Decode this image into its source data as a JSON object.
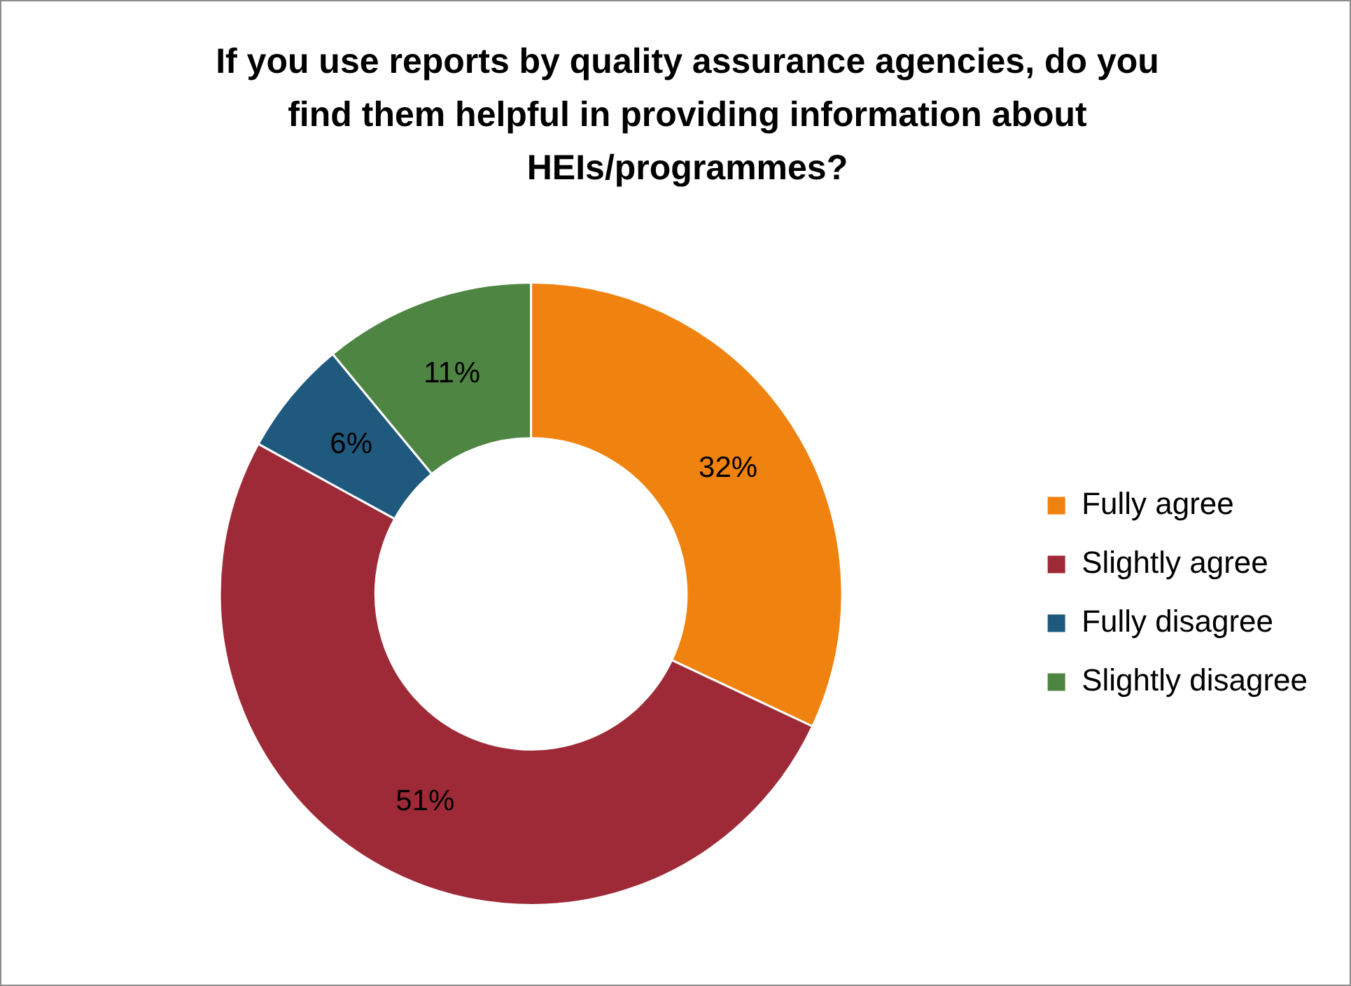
{
  "chart_data": {
    "type": "donut",
    "title": "If you use reports by quality assurance agencies, do you find them helpful in providing information about HEIs/programmes?",
    "categories": [
      "Fully agree",
      "Slightly agree",
      "Fully disagree",
      "Slightly disagree"
    ],
    "values": [
      32,
      51,
      6,
      11
    ],
    "colors": [
      "#f0820f",
      "#9e2a37",
      "#1f5a7e",
      "#4e8542"
    ],
    "value_labels": [
      "32%",
      "51%",
      "6%",
      "11%"
    ],
    "legend": "right"
  }
}
